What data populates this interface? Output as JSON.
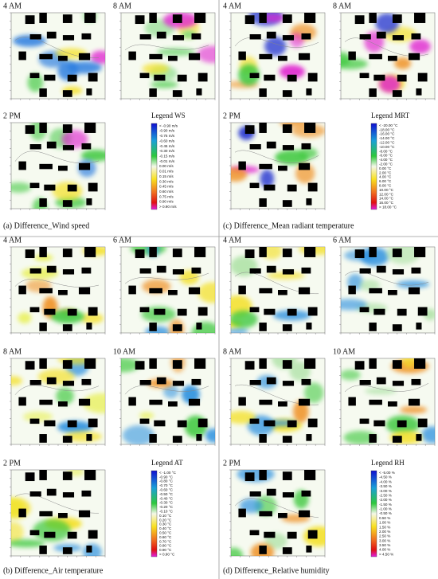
{
  "sections": [
    {
      "panels": [
        {
          "label": "4 AM"
        },
        {
          "label": "8 AM"
        },
        {
          "label": "2 PM"
        }
      ],
      "legend": {
        "title": "Legend WS",
        "entries": [
          "< -0.90 m/s",
          "-0.90 m/s",
          "-0.75 m/s",
          "-0.60 m/s",
          "-0.45 m/s",
          "-0.30 m/s",
          "-0.15 m/s",
          "-0.01 m/s",
          "0.00 m/s",
          "0.01 m/s",
          "0.15 m/s",
          "0.30 m/s",
          "0.45 m/s",
          "0.60 m/s",
          "0.75 m/s",
          "0.90 m/s",
          "> 0.90 m/s"
        ]
      },
      "caption": "(a) Difference_Wind speed"
    },
    {
      "panels": [
        {
          "label": "4 AM"
        },
        {
          "label": "8 AM"
        },
        {
          "label": "2 PM"
        }
      ],
      "legend": {
        "title": "Legend MRT",
        "entries": [
          "< -20.00 °C",
          "-18.00 °C",
          "-16.00 °C",
          "-14.00 °C",
          "-12.00 °C",
          "-10.00 °C",
          "-8.00 °C",
          "-6.00 °C",
          "-4.00 °C",
          "-2.00 °C",
          "0.00 °C",
          "2.00 °C",
          "4.00 °C",
          "6.00 °C",
          "8.00 °C",
          "10.00 °C",
          "12.00 °C",
          "14.00 °C",
          "16.00 °C",
          "> 18.00 °C"
        ]
      },
      "caption": "(c) Difference_Mean radiant temperature"
    },
    {
      "panels": [
        {
          "label": "4 AM"
        },
        {
          "label": "6 AM"
        },
        {
          "label": "8 AM"
        },
        {
          "label": "10 AM"
        },
        {
          "label": "2 PM"
        }
      ],
      "legend": {
        "title": "Legend AT",
        "entries": [
          "< -1.00 °C",
          "-0.90 °C",
          "-0.80 °C",
          "-0.70 °C",
          "-0.60 °C",
          "-0.50 °C",
          "-0.40 °C",
          "-0.30 °C",
          "-0.20 °C",
          "-0.10 °C",
          "0.10 °C",
          "0.20 °C",
          "0.30 °C",
          "0.40 °C",
          "0.50 °C",
          "0.60 °C",
          "0.70 °C",
          "0.80 °C",
          "0.90 °C",
          "> 0.90 °C"
        ]
      },
      "caption": "(b) Difference_Air temperature"
    },
    {
      "panels": [
        {
          "label": "4 AM"
        },
        {
          "label": "6 AM"
        },
        {
          "label": "8 AM"
        },
        {
          "label": "10 AM"
        },
        {
          "label": "2 PM"
        }
      ],
      "legend": {
        "title": "Legend RH",
        "entries": [
          "< -5.00 %",
          "-4.50 %",
          "-4.00 %",
          "-3.50 %",
          "-3.00 %",
          "-2.50 %",
          "-2.00 %",
          "-1.50 %",
          "-1.00 %",
          "-0.50 %",
          "0.50 %",
          "1.00 %",
          "1.50 %",
          "2.00 %",
          "2.50 %",
          "3.00 %",
          "3.50 %",
          "4.00 %",
          "> 4.50 %"
        ]
      },
      "caption": "(d) Difference_Relative humidity"
    }
  ]
}
